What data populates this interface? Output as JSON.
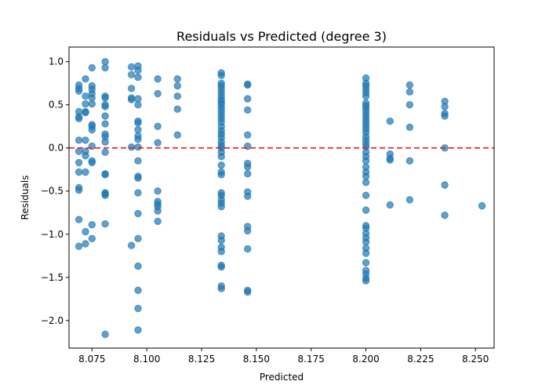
{
  "chart_data": {
    "type": "scatter",
    "title": "Residuals vs Predicted (degree 3)",
    "xlabel": "Predicted",
    "ylabel": "Residuals",
    "xlim": [
      8.0645,
      8.2585
    ],
    "ylim": [
      -2.32,
      1.17
    ],
    "x_ticks": [
      8.075,
      8.1,
      8.125,
      8.15,
      8.175,
      8.2,
      8.225,
      8.25
    ],
    "x_tick_labels": [
      "8.075",
      "8.100",
      "8.125",
      "8.150",
      "8.175",
      "8.200",
      "8.225",
      "8.250"
    ],
    "y_ticks": [
      -2.0,
      -1.5,
      -1.0,
      -0.5,
      0.0,
      0.5,
      1.0
    ],
    "y_tick_labels": [
      "−2.0",
      "−1.5",
      "−1.0",
      "−0.5",
      "0.0",
      "0.5",
      "1.0"
    ],
    "grid": false,
    "reference_line": {
      "y": 0.0,
      "color": "#e31a1c",
      "style": "dashed"
    },
    "point_color": "#1f77b4",
    "point_alpha": 0.7,
    "series": [
      {
        "points": [
          [
            8.069,
            0.73
          ],
          [
            8.069,
            0.69
          ],
          [
            8.069,
            0.66
          ],
          [
            8.069,
            0.42
          ],
          [
            8.069,
            0.36
          ],
          [
            8.069,
            0.34
          ],
          [
            8.069,
            0.09
          ],
          [
            8.069,
            -0.04
          ],
          [
            8.069,
            -0.17
          ],
          [
            8.069,
            -0.28
          ],
          [
            8.069,
            -0.46
          ],
          [
            8.069,
            -0.49
          ],
          [
            8.069,
            -0.83
          ],
          [
            8.069,
            -1.14
          ],
          [
            8.072,
            0.8
          ],
          [
            8.072,
            0.6
          ],
          [
            8.072,
            0.51
          ],
          [
            8.072,
            0.42
          ],
          [
            8.072,
            0.41
          ],
          [
            8.072,
            0.09
          ],
          [
            8.072,
            -0.04
          ],
          [
            8.072,
            -0.09
          ],
          [
            8.072,
            -0.28
          ],
          [
            8.072,
            -0.97
          ],
          [
            8.072,
            -1.11
          ],
          [
            8.075,
            0.93
          ],
          [
            8.075,
            0.72
          ],
          [
            8.075,
            0.68
          ],
          [
            8.075,
            0.63
          ],
          [
            8.075,
            0.58
          ],
          [
            8.075,
            0.51
          ],
          [
            8.075,
            0.27
          ],
          [
            8.075,
            0.25
          ],
          [
            8.075,
            0.21
          ],
          [
            8.075,
            0.02
          ],
          [
            8.075,
            -0.15
          ],
          [
            8.075,
            -0.17
          ],
          [
            8.075,
            -0.89
          ],
          [
            8.075,
            -1.05
          ],
          [
            8.081,
            1.0
          ],
          [
            8.081,
            0.93
          ],
          [
            8.081,
            0.6
          ],
          [
            8.081,
            0.58
          ],
          [
            8.081,
            0.5
          ],
          [
            8.081,
            0.48
          ],
          [
            8.081,
            0.37
          ],
          [
            8.081,
            0.28
          ],
          [
            8.081,
            0.16
          ],
          [
            8.081,
            0.13
          ],
          [
            8.081,
            0.07
          ],
          [
            8.081,
            -0.05
          ],
          [
            8.081,
            -0.3
          ],
          [
            8.081,
            -0.31
          ],
          [
            8.081,
            -0.52
          ],
          [
            8.081,
            -0.53
          ],
          [
            8.081,
            -0.55
          ],
          [
            8.081,
            -0.88
          ],
          [
            8.081,
            -2.16
          ],
          [
            8.093,
            0.94
          ],
          [
            8.093,
            0.85
          ],
          [
            8.093,
            0.69
          ],
          [
            8.093,
            0.58
          ],
          [
            8.093,
            0.56
          ],
          [
            8.093,
            0.01
          ],
          [
            8.093,
            -1.13
          ],
          [
            8.096,
            0.95
          ],
          [
            8.096,
            0.9
          ],
          [
            8.096,
            0.82
          ],
          [
            8.096,
            0.57
          ],
          [
            8.096,
            0.5
          ],
          [
            8.096,
            0.31
          ],
          [
            8.096,
            0.29
          ],
          [
            8.096,
            0.21
          ],
          [
            8.096,
            0.14
          ],
          [
            8.096,
            0.1
          ],
          [
            8.096,
            0.01
          ],
          [
            8.096,
            -0.15
          ],
          [
            8.096,
            -0.33
          ],
          [
            8.096,
            -0.35
          ],
          [
            8.096,
            -0.52
          ],
          [
            8.096,
            -0.76
          ],
          [
            8.096,
            -1.05
          ],
          [
            8.096,
            -1.37
          ],
          [
            8.096,
            -1.65
          ],
          [
            8.096,
            -1.86
          ],
          [
            8.096,
            -2.11
          ],
          [
            8.105,
            0.8
          ],
          [
            8.105,
            0.63
          ],
          [
            8.105,
            0.25
          ],
          [
            8.105,
            0.06
          ],
          [
            8.105,
            -0.5
          ],
          [
            8.105,
            -0.62
          ],
          [
            8.105,
            -0.65
          ],
          [
            8.105,
            -0.68
          ],
          [
            8.105,
            -0.73
          ],
          [
            8.105,
            -0.85
          ],
          [
            8.114,
            0.8
          ],
          [
            8.114,
            0.72
          ],
          [
            8.114,
            0.6
          ],
          [
            8.114,
            0.45
          ],
          [
            8.114,
            0.15
          ],
          [
            8.134,
            0.87
          ],
          [
            8.134,
            0.84
          ],
          [
            8.134,
            0.75
          ],
          [
            8.134,
            0.72
          ],
          [
            8.134,
            0.68
          ],
          [
            8.134,
            0.64
          ],
          [
            8.134,
            0.6
          ],
          [
            8.134,
            0.56
          ],
          [
            8.134,
            0.53
          ],
          [
            8.134,
            0.5
          ],
          [
            8.134,
            0.46
          ],
          [
            8.134,
            0.42
          ],
          [
            8.134,
            0.38
          ],
          [
            8.134,
            0.34
          ],
          [
            8.134,
            0.3
          ],
          [
            8.134,
            0.25
          ],
          [
            8.134,
            0.2
          ],
          [
            8.134,
            0.16
          ],
          [
            8.134,
            0.12
          ],
          [
            8.134,
            0.07
          ],
          [
            8.134,
            0.03
          ],
          [
            8.134,
            0.0
          ],
          [
            8.134,
            -0.05
          ],
          [
            8.134,
            -0.1
          ],
          [
            8.134,
            -0.2
          ],
          [
            8.134,
            -0.28
          ],
          [
            8.134,
            -0.31
          ],
          [
            8.134,
            -0.52
          ],
          [
            8.134,
            -0.55
          ],
          [
            8.134,
            -0.6
          ],
          [
            8.134,
            -0.64
          ],
          [
            8.134,
            -0.68
          ],
          [
            8.134,
            -1.02
          ],
          [
            8.134,
            -1.07
          ],
          [
            8.134,
            -1.15
          ],
          [
            8.134,
            -1.2
          ],
          [
            8.134,
            -1.36
          ],
          [
            8.134,
            -1.38
          ],
          [
            8.134,
            -1.6
          ],
          [
            8.134,
            -1.63
          ],
          [
            8.146,
            0.74
          ],
          [
            8.146,
            0.73
          ],
          [
            8.146,
            0.57
          ],
          [
            8.146,
            0.44
          ],
          [
            8.146,
            0.15
          ],
          [
            8.146,
            0.02
          ],
          [
            8.146,
            -0.18
          ],
          [
            8.146,
            -0.22
          ],
          [
            8.146,
            -0.3
          ],
          [
            8.146,
            -0.51
          ],
          [
            8.146,
            -0.56
          ],
          [
            8.146,
            -0.91
          ],
          [
            8.146,
            -0.96
          ],
          [
            8.146,
            -1.17
          ],
          [
            8.146,
            -1.65
          ],
          [
            8.146,
            -1.67
          ],
          [
            8.2,
            0.81
          ],
          [
            8.2,
            0.75
          ],
          [
            8.2,
            0.72
          ],
          [
            8.2,
            0.68
          ],
          [
            8.2,
            0.64
          ],
          [
            8.2,
            0.6
          ],
          [
            8.2,
            0.52
          ],
          [
            8.2,
            0.49
          ],
          [
            8.2,
            0.46
          ],
          [
            8.2,
            0.42
          ],
          [
            8.2,
            0.38
          ],
          [
            8.2,
            0.34
          ],
          [
            8.2,
            0.3
          ],
          [
            8.2,
            0.26
          ],
          [
            8.2,
            0.22
          ],
          [
            8.2,
            0.18
          ],
          [
            8.2,
            0.13
          ],
          [
            8.2,
            0.09
          ],
          [
            8.2,
            0.05
          ],
          [
            8.2,
            0.01
          ],
          [
            8.2,
            -0.05
          ],
          [
            8.2,
            -0.1
          ],
          [
            8.2,
            -0.15
          ],
          [
            8.2,
            -0.22
          ],
          [
            8.2,
            -0.28
          ],
          [
            8.2,
            -0.33
          ],
          [
            8.2,
            -0.4
          ],
          [
            8.2,
            -0.55
          ],
          [
            8.2,
            -0.72
          ],
          [
            8.2,
            -0.9
          ],
          [
            8.2,
            -0.93
          ],
          [
            8.2,
            -0.99
          ],
          [
            8.2,
            -1.04
          ],
          [
            8.2,
            -1.09
          ],
          [
            8.2,
            -1.16
          ],
          [
            8.2,
            -1.22
          ],
          [
            8.2,
            -1.33
          ],
          [
            8.2,
            -1.42
          ],
          [
            8.2,
            -1.46
          ],
          [
            8.2,
            -1.51
          ],
          [
            8.2,
            -1.54
          ],
          [
            8.211,
            0.31
          ],
          [
            8.211,
            -0.07
          ],
          [
            8.211,
            -0.12
          ],
          [
            8.211,
            -0.14
          ],
          [
            8.211,
            -0.66
          ],
          [
            8.22,
            0.73
          ],
          [
            8.22,
            0.65
          ],
          [
            8.22,
            0.5
          ],
          [
            8.22,
            0.24
          ],
          [
            8.22,
            -0.15
          ],
          [
            8.22,
            -0.6
          ],
          [
            8.236,
            0.54
          ],
          [
            8.236,
            0.48
          ],
          [
            8.236,
            0.4
          ],
          [
            8.236,
            0.37
          ],
          [
            8.236,
            0.0
          ],
          [
            8.236,
            -0.43
          ],
          [
            8.236,
            -0.78
          ],
          [
            8.253,
            -0.67
          ]
        ]
      }
    ]
  }
}
